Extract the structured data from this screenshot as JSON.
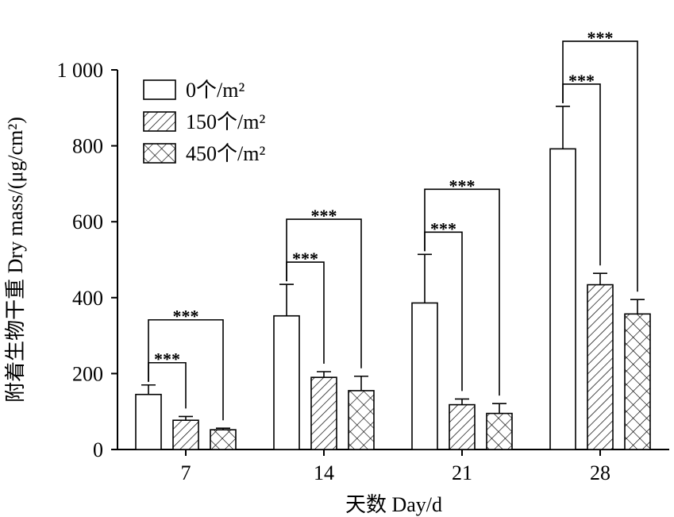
{
  "chart_data": {
    "type": "bar",
    "xlabel": "天数 Day/d",
    "ylabel": "附着生物干重 Dry mass/(μg/cm²)",
    "categories": [
      "7",
      "14",
      "21",
      "28"
    ],
    "ylim": [
      0,
      1000
    ],
    "yticks": [
      0,
      200,
      400,
      600,
      800,
      1000
    ],
    "ytick_labels": [
      "0",
      "200",
      "400",
      "600",
      "800",
      "1 000"
    ],
    "legend_position": "top-left",
    "series": [
      {
        "name": "0个/m²",
        "pattern": "plain",
        "values": [
          145,
          352,
          386,
          792
        ],
        "errors": [
          25,
          83,
          128,
          112
        ]
      },
      {
        "name": "150个/m²",
        "pattern": "diagonal-hatch",
        "values": [
          77,
          190,
          118,
          434
        ],
        "errors": [
          10,
          15,
          15,
          30
        ]
      },
      {
        "name": "450个/m²",
        "pattern": "cross-hatch",
        "values": [
          52,
          155,
          95,
          357
        ],
        "errors": [
          4,
          38,
          26,
          38
        ]
      }
    ],
    "significance": [
      {
        "category": "7",
        "from": 0,
        "to": 1,
        "label": "***"
      },
      {
        "category": "7",
        "from": 0,
        "to": 2,
        "label": "***"
      },
      {
        "category": "14",
        "from": 0,
        "to": 1,
        "label": "***"
      },
      {
        "category": "14",
        "from": 0,
        "to": 2,
        "label": "***"
      },
      {
        "category": "21",
        "from": 0,
        "to": 1,
        "label": "***"
      },
      {
        "category": "21",
        "from": 0,
        "to": 2,
        "label": "***"
      },
      {
        "category": "28",
        "from": 0,
        "to": 1,
        "label": "***"
      },
      {
        "category": "28",
        "from": 0,
        "to": 2,
        "label": "***"
      }
    ]
  }
}
